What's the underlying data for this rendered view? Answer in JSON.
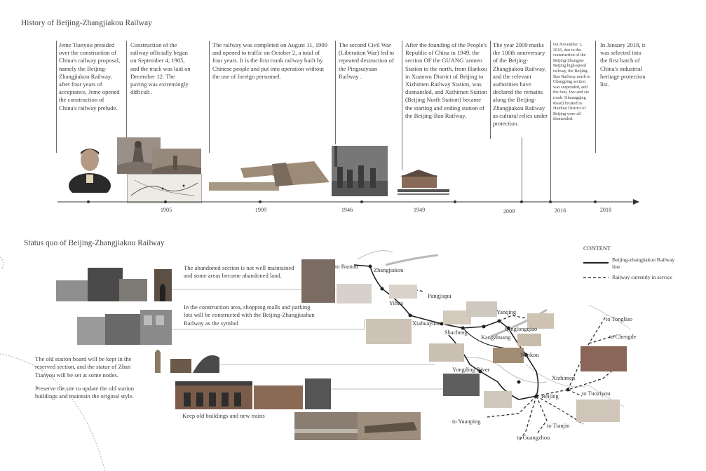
{
  "timeline": {
    "title": "History of Beijing-Zhangjiakou Railway",
    "events": [
      {
        "text": "Jeme Tianyou presided over the construction of China's railway proposal, namely the Beijing-Zhangjiakou Railway, after four years of acceptance, Jeme opened the construction of China's railway prelude."
      },
      {
        "text": "Construction of the railway officially began on September 4, 1905, and the track was laid on December 12.  The paving was extremingly difficult ."
      },
      {
        "text": "The railway was completed on August 11, 1909 and opened to traffic on October 2, a total of four years.  It is the first trunk railway built by Chinese people and put into operation without the use of foreign personnel."
      },
      {
        "text": "The second Civil War (Liberation War) led to repeated destruction of the Pingsuiyuan Railway ."
      },
      {
        "text": "After the founding of the People's Republic of China in 1949, the section OF the GUANG 'anmen Station to the north, from Hankou in Xuanwu District of Beijing to Xizhimen Railway Station, was dismantled, and Xizhimen Station (Beijing North Station) became the starting and ending station of the Beijing-Bao Railway."
      },
      {
        "text": "The year 2009 marks the 100th anniversary of the Beijing-Zhangjiakou Railway, and the relevant authorities have declared the remains along the Beijing-Zhangjiakou Railway as cultural relics under protection."
      },
      {
        "text": "On November 1, 2016, due to the construction of the Beijing-Zhangjia-Beijing high-speed railway, the Beijing-Bao Railway north to Changping section was suspended, and the four, five and six roads (Shuangqing Road) located in Haidian District of Beijing were all dismantled."
      },
      {
        "text": "In January 2018, it was selected into the first batch of China's industrial heritage protection list."
      }
    ],
    "years": [
      "1905",
      "1909",
      "1946",
      "1949",
      "2009",
      "2016",
      "2018"
    ]
  },
  "status": {
    "title": "Status quo of Beijing-Zhangjiakou Railway",
    "notes": [
      "The abandoned section is not well maintained and some areas become abandoned land.",
      "In the construction area, shopping malls and parking lots will be constructed with the Beijing-Zhangjiashan Railway as the symbol",
      "The old station board will be kept in the reserved section, and the statue of Zhan Tianyou will be set at some nodes.",
      "Preserve the site to update the old station buildings and maintain the original style.",
      "Keep old buildings and new trains"
    ]
  },
  "map": {
    "stations": [
      "to Baotou",
      "Zhangjiakou",
      "Pangjiapu",
      "Yihua",
      "Xiahuayuan",
      "Shacheng",
      "Yanqing",
      "Kangzhuang",
      "Qinglongqiao",
      "Nankou",
      "Yongding River",
      "Xizhimen",
      "Beijing",
      "to Tongliao",
      "to Chengde",
      "to Tuoziyou",
      "to Yuanping",
      "to Tianjin",
      "to Guangzhou"
    ]
  },
  "legend": {
    "title": "CONTENT",
    "items": [
      {
        "label": "Beijing-zhangjiakou Railway line",
        "style": "solid"
      },
      {
        "label": "Railway currently in service",
        "style": "dashed"
      }
    ]
  },
  "colors": {
    "line": "#222222",
    "text": "#3d3d3d",
    "river": "#b9b9b9"
  }
}
